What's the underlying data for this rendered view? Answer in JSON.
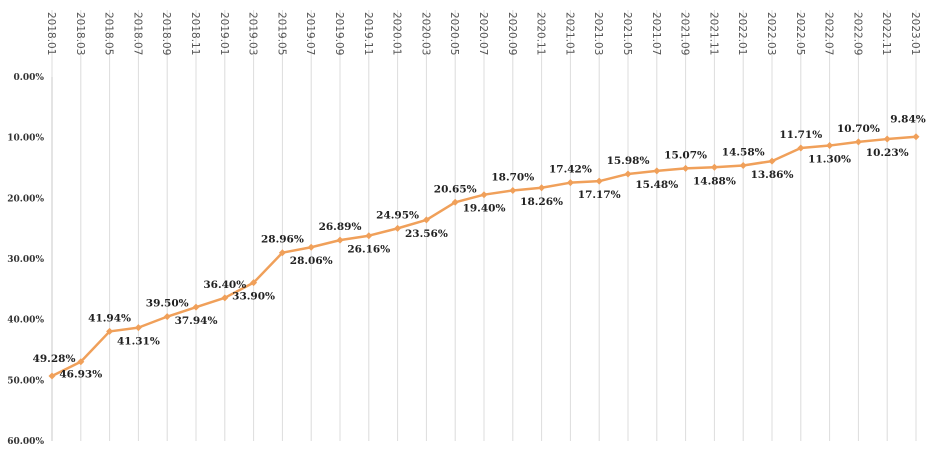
{
  "chart_data": {
    "type": "line",
    "title": "",
    "xlabel": "",
    "ylabel": "",
    "y_axis_inverted": true,
    "ylim": [
      0,
      60
    ],
    "ytick_values": [
      0,
      10,
      20,
      30,
      40,
      50,
      60
    ],
    "ytick_labels": [
      "0.00%",
      "10.00%",
      "20.00%",
      "30.00%",
      "40.00%",
      "50.00%",
      "60.00%"
    ],
    "x_tick_labels": [
      "2018.01",
      "2018.03",
      "2018.05",
      "2018.07",
      "2018.09",
      "2018.11",
      "2019.01",
      "2019.03",
      "2019.05",
      "2019.07",
      "2019.09",
      "2019.11",
      "2020.01",
      "2020.03",
      "2020.05",
      "2020.07",
      "2020.09",
      "2020.11",
      "2021.01",
      "2021.03",
      "2021.05",
      "2021.07",
      "2021.09",
      "2021.11",
      "2022.01",
      "2022.03",
      "2022.05",
      "2022.07",
      "2022.09",
      "2022.11",
      "2023.01"
    ],
    "grid": "vertical",
    "line_color": "#f0a05a",
    "series": [
      {
        "values": [
          49.28,
          46.93,
          41.94,
          41.31,
          39.5,
          37.94,
          36.4,
          33.9,
          28.96,
          28.06,
          26.89,
          26.16,
          24.95,
          23.56,
          20.65,
          19.4,
          18.7,
          18.26,
          17.42,
          17.17,
          15.98,
          15.48,
          15.07,
          14.88,
          14.58,
          13.86,
          11.71,
          11.3,
          10.7,
          10.23,
          9.84
        ],
        "labels": [
          "49.28%",
          "46.93%",
          "41.94%",
          "41.31%",
          "39.50%",
          "37.94%",
          "36.40%",
          "33.90%",
          "28.96%",
          "28.06%",
          "26.89%",
          "26.16%",
          "24.95%",
          "23.56%",
          "20.65%",
          "19.40%",
          "18.70%",
          "18.26%",
          "17.42%",
          "17.17%",
          "15.98%",
          "15.48%",
          "15.07%",
          "14.88%",
          "14.58%",
          "13.86%",
          "11.71%",
          "11.30%",
          "10.70%",
          "10.23%",
          "9.84%"
        ]
      }
    ]
  }
}
